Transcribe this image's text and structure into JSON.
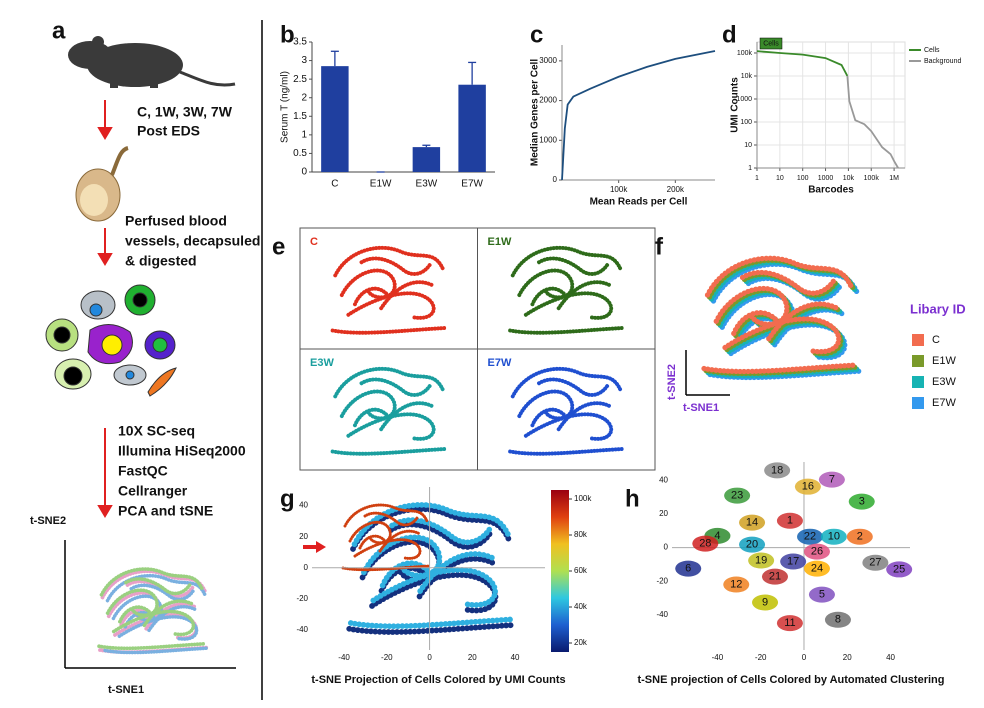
{
  "panel_a": {
    "label": "a",
    "step1": [
      "C, 1W, 3W, 7W",
      "Post EDS"
    ],
    "step2": [
      "Perfused blood",
      "vessels, decapsuled",
      "& digested"
    ],
    "step3": [
      "10X SC-seq",
      "Illumina HiSeq2000",
      "FastQC",
      "Cellranger",
      "PCA and tSNE"
    ],
    "tsne_y": "t-SNE2",
    "tsne_x": "t-SNE1"
  },
  "chart_data": [
    {
      "type": "bar",
      "label": "b",
      "ylabel": "Serum T (ng/ml)",
      "categories": [
        "C",
        "E1W",
        "E3W",
        "E7W"
      ],
      "values": [
        2.85,
        0,
        0.67,
        2.35
      ],
      "errors": [
        0.4,
        0,
        0.05,
        0.6
      ],
      "color": "#1f3f9f",
      "ylim": [
        0,
        3.5
      ],
      "yticks": [
        0,
        0.5,
        1,
        1.5,
        2,
        2.5,
        3,
        3.5
      ]
    },
    {
      "type": "line",
      "label": "c",
      "xlabel": "Mean Reads per Cell",
      "ylabel": "Median Genes per Cell",
      "x": [
        0,
        5000,
        10000,
        20000,
        50000,
        75000,
        100000,
        150000,
        200000,
        270000
      ],
      "values": [
        0,
        1300,
        1900,
        2100,
        2300,
        2450,
        2600,
        2850,
        3050,
        3250
      ],
      "color": "#1d4e7e",
      "xlim": [
        0,
        270000
      ],
      "ylim": [
        0,
        3400
      ],
      "xticks": [
        {
          "value": 100000,
          "label": "100k"
        },
        {
          "value": 200000,
          "label": "200k"
        }
      ],
      "yticks": [
        0,
        1000,
        2000,
        3000
      ],
      "grid": false
    },
    {
      "type": "line",
      "label": "d",
      "xlabel": "Barcodes",
      "ylabel": "UMI Counts",
      "xlog": true,
      "ylog": true,
      "grid": true,
      "legend": "right",
      "annotation": "Cells",
      "series": [
        {
          "name": "Cells",
          "color": "#3a8a2a",
          "x": [
            1,
            10,
            100,
            1000,
            5000,
            9000
          ],
          "values": [
            120000,
            100000,
            85000,
            60000,
            30000,
            10000
          ]
        },
        {
          "name": "Background",
          "color": "#999999",
          "x": [
            9000,
            11000,
            20000,
            50000,
            100000,
            300000,
            700000,
            1000000,
            1500000
          ],
          "values": [
            10000,
            800,
            120,
            80,
            40,
            8,
            4,
            2,
            1
          ]
        }
      ],
      "xlim": [
        1,
        3000000
      ],
      "ylim": [
        1,
        300000
      ],
      "xticks": [
        1,
        10,
        100,
        1000,
        {
          "value": 10000,
          "label": "10k"
        },
        {
          "value": 100000,
          "label": "100k"
        },
        {
          "value": 1000000,
          "label": "1M"
        }
      ],
      "yticks": [
        1,
        10,
        100,
        1000,
        {
          "value": 10000,
          "label": "10k"
        },
        {
          "value": 100000,
          "label": "100k"
        }
      ]
    },
    {
      "type": "tsne_grid",
      "label": "e",
      "panels": [
        {
          "name": "C",
          "color": "#e0301e"
        },
        {
          "name": "E1W",
          "color": "#2e6b1a"
        },
        {
          "name": "E3W",
          "color": "#1a9e9e"
        },
        {
          "name": "E7W",
          "color": "#1f4fd0"
        }
      ]
    },
    {
      "type": "tsne_legend",
      "label": "f",
      "legend_title": "Libary ID",
      "ylabel": "t-SNE2",
      "xlabel": "t-SNE1",
      "series": [
        {
          "name": "C",
          "color": "#f26c4f"
        },
        {
          "name": "E1W",
          "color": "#7a9a2a"
        },
        {
          "name": "E3W",
          "color": "#17b3b3"
        },
        {
          "name": "E7W",
          "color": "#3399ee"
        }
      ]
    },
    {
      "type": "scatter",
      "label": "g",
      "caption": "t-SNE Projection of Cells Colored by UMI Counts",
      "xlim": [
        -55,
        54
      ],
      "ylim": [
        -53,
        52
      ],
      "xticks": [
        -40,
        -20,
        0,
        20,
        40
      ],
      "yticks": [
        -40,
        -20,
        0,
        20,
        40
      ],
      "colorbar": {
        "lim": [
          15000,
          105000
        ],
        "colors": [
          "#0a1a6e",
          "#1e5fd0",
          "#2ec8e0",
          "#b0e050",
          "#f0c020",
          "#e04010",
          "#9a0010"
        ],
        "ticks": [
          {
            "value": 20000,
            "label": "20k"
          },
          {
            "value": 40000,
            "label": "40k"
          },
          {
            "value": 60000,
            "label": "60k"
          },
          {
            "value": 80000,
            "label": "80k"
          },
          {
            "value": 100000,
            "label": "100k"
          }
        ]
      }
    },
    {
      "type": "scatter",
      "label": "h",
      "caption": "t-SNE projection of Cells Colored by Automated Clustering",
      "xlim": [
        -61,
        49
      ],
      "ylim": [
        -61,
        51
      ],
      "xticks": [
        -40,
        -20,
        0,
        20,
        40
      ],
      "yticks": [
        -40,
        -20,
        0,
        20,
        40
      ],
      "clusters": [
        {
          "name": "18",
          "x": -12.4,
          "y": 46,
          "color": "#8a8a8a"
        },
        {
          "name": "7",
          "x": 12.9,
          "y": 40.5,
          "color": "#b05ab8"
        },
        {
          "name": "16",
          "x": 1.8,
          "y": 36.3,
          "color": "#e0b030"
        },
        {
          "name": "23",
          "x": -30.9,
          "y": 31,
          "color": "#3a9a3a"
        },
        {
          "name": "3",
          "x": 26.7,
          "y": 27.4,
          "color": "#2eaa2e"
        },
        {
          "name": "4",
          "x": -40,
          "y": 7,
          "color": "#2e8b2e"
        },
        {
          "name": "14",
          "x": -24,
          "y": 14.9,
          "color": "#d0a020"
        },
        {
          "name": "1",
          "x": -6.5,
          "y": 16,
          "color": "#d03030"
        },
        {
          "name": "22",
          "x": 2.8,
          "y": 6.5,
          "color": "#1060b0"
        },
        {
          "name": "10",
          "x": 13.8,
          "y": 6.5,
          "color": "#10b0c0"
        },
        {
          "name": "2",
          "x": 25.8,
          "y": 6.5,
          "color": "#f07020"
        },
        {
          "name": "28",
          "x": -45.6,
          "y": 2.4,
          "color": "#d02020"
        },
        {
          "name": "20",
          "x": -24,
          "y": 1.8,
          "color": "#10a0c0"
        },
        {
          "name": "26",
          "x": 6,
          "y": -2.4,
          "color": "#e05080"
        },
        {
          "name": "27",
          "x": 33,
          "y": -9,
          "color": "#808080"
        },
        {
          "name": "25",
          "x": 44,
          "y": -13,
          "color": "#8040c0"
        },
        {
          "name": "6",
          "x": -53.5,
          "y": -12.5,
          "color": "#203090"
        },
        {
          "name": "19",
          "x": -19.8,
          "y": -7.7,
          "color": "#c0c020"
        },
        {
          "name": "17",
          "x": -5,
          "y": -8.3,
          "color": "#4040a0"
        },
        {
          "name": "24",
          "x": 6,
          "y": -12.5,
          "color": "#ffb000"
        },
        {
          "name": "21",
          "x": -13.4,
          "y": -17.3,
          "color": "#c03030"
        },
        {
          "name": "12",
          "x": -31.3,
          "y": -22,
          "color": "#f08020"
        },
        {
          "name": "5",
          "x": 8.3,
          "y": -28,
          "color": "#8050c0"
        },
        {
          "name": "9",
          "x": -18,
          "y": -32.7,
          "color": "#c0c000"
        },
        {
          "name": "11",
          "x": -6.5,
          "y": -45,
          "color": "#d03030"
        },
        {
          "name": "8",
          "x": 15.7,
          "y": -43,
          "color": "#707070"
        }
      ]
    }
  ]
}
